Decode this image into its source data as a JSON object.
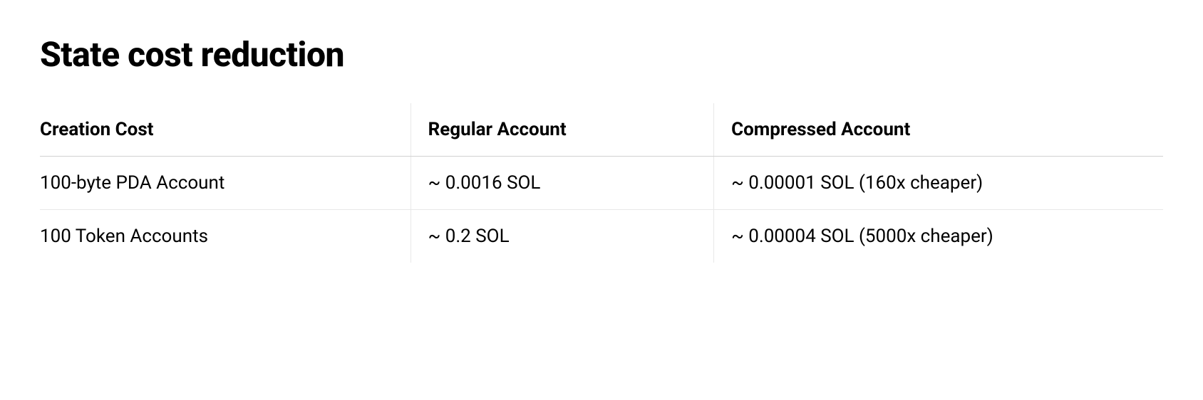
{
  "title": "State cost reduction",
  "table": {
    "type": "table",
    "columns": [
      {
        "label": "Creation Cost",
        "width_pct": 33,
        "align": "left"
      },
      {
        "label": "Regular Account",
        "width_pct": 27,
        "align": "left"
      },
      {
        "label": "Compressed Account",
        "width_pct": 40,
        "align": "left"
      }
    ],
    "rows": [
      [
        "100-byte PDA Account",
        "~ 0.0016 SOL",
        "~ 0.00001 SOL (160x cheaper)"
      ],
      [
        "100 Token Accounts",
        "~ 0.2 SOL",
        "~ 0.00004 SOL (5000x cheaper)"
      ]
    ],
    "background_color": "#ffffff",
    "header_border_color": "#d0d0d0",
    "row_border_color": "#e8e8e8",
    "column_divider_color": "#e8e8e8",
    "title_fontsize": 48,
    "title_fontweight": 800,
    "header_fontsize": 26,
    "header_fontweight": 700,
    "cell_fontsize": 26,
    "cell_fontweight": 400,
    "text_color": "#000000"
  }
}
